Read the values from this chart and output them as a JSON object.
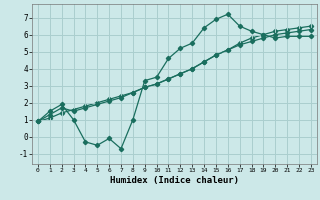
{
  "xlabel": "Humidex (Indice chaleur)",
  "background_color": "#cce8e8",
  "grid_color": "#aacece",
  "line_color": "#1a6e5e",
  "xlim": [
    -0.5,
    23.5
  ],
  "ylim": [
    -1.6,
    7.8
  ],
  "xticks": [
    0,
    1,
    2,
    3,
    4,
    5,
    6,
    7,
    8,
    9,
    10,
    11,
    12,
    13,
    14,
    15,
    16,
    17,
    18,
    19,
    20,
    21,
    22,
    23
  ],
  "yticks": [
    -1,
    0,
    1,
    2,
    3,
    4,
    5,
    6,
    7
  ],
  "line1_x": [
    0,
    1,
    2,
    3,
    4,
    5,
    6,
    7,
    8,
    9,
    10,
    11,
    12,
    13,
    14,
    15,
    16,
    17,
    18,
    19,
    20,
    21,
    22,
    23
  ],
  "line1_y": [
    0.9,
    1.5,
    1.9,
    1.0,
    -0.3,
    -0.5,
    -0.1,
    -0.7,
    1.0,
    3.3,
    3.5,
    4.6,
    5.2,
    5.5,
    6.4,
    6.9,
    7.2,
    6.5,
    6.2,
    6.0,
    5.8,
    5.9,
    5.9,
    5.9
  ],
  "line2_x": [
    0,
    1,
    2,
    3,
    4,
    5,
    6,
    7,
    8,
    9,
    10,
    11,
    12,
    13,
    14,
    15,
    16,
    17,
    18,
    19,
    20,
    21,
    22,
    23
  ],
  "line2_y": [
    0.9,
    1.3,
    1.7,
    1.5,
    1.7,
    1.9,
    2.1,
    2.3,
    2.6,
    2.9,
    3.1,
    3.4,
    3.7,
    4.0,
    4.4,
    4.8,
    5.1,
    5.4,
    5.6,
    5.8,
    6.0,
    6.1,
    6.2,
    6.3
  ],
  "line3_x": [
    0,
    1,
    2,
    3,
    4,
    5,
    6,
    7,
    8,
    9,
    10,
    11,
    12,
    13,
    14,
    15,
    16,
    17,
    18,
    19,
    20,
    21,
    22,
    23
  ],
  "line3_y": [
    0.9,
    1.1,
    1.4,
    1.6,
    1.8,
    2.0,
    2.2,
    2.4,
    2.6,
    2.9,
    3.1,
    3.4,
    3.7,
    4.0,
    4.4,
    4.8,
    5.1,
    5.5,
    5.8,
    6.0,
    6.2,
    6.3,
    6.4,
    6.5
  ]
}
